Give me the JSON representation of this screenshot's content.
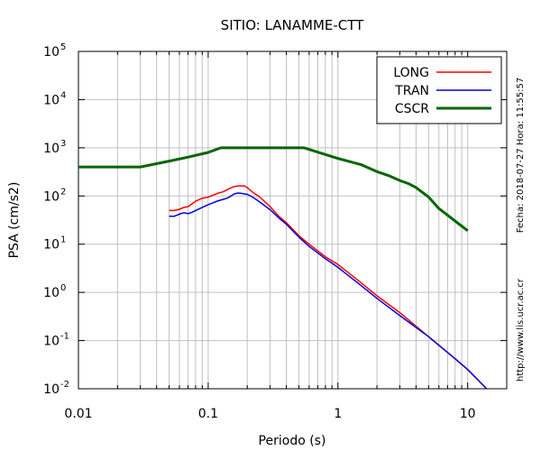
{
  "chart_data": {
    "type": "line",
    "title": "SITIO: LANAMME-CTT",
    "xlabel": "Periodo (s)",
    "ylabel": "PSA (cm/s2)",
    "x_scale": "log",
    "y_scale": "log",
    "xlim": [
      0.01,
      20
    ],
    "ylim": [
      0.01,
      100000
    ],
    "x_ticks": [
      0.01,
      0.1,
      1,
      10
    ],
    "x_tick_labels": [
      "0.01",
      "0.1",
      "1",
      "10"
    ],
    "y_ticks": [
      0.01,
      0.1,
      1,
      10,
      100,
      1000,
      10000,
      100000
    ],
    "y_tick_exponents": [
      "-2",
      "-1",
      "0",
      "1",
      "2",
      "3",
      "4",
      "5"
    ],
    "y_tick_base": "10",
    "grid": true,
    "legend_position": "top-right",
    "side_text": {
      "date": "Fecha: 2018-07-27 Hora: 11:55:57",
      "url": "http://www.lis.ucr.ac.cr"
    },
    "series": [
      {
        "name": "LONG",
        "color": "#ff0000",
        "x": [
          0.05,
          0.055,
          0.06,
          0.065,
          0.07,
          0.08,
          0.09,
          0.1,
          0.11,
          0.12,
          0.13,
          0.14,
          0.15,
          0.16,
          0.17,
          0.18,
          0.19,
          0.2,
          0.22,
          0.25,
          0.3,
          0.35,
          0.4,
          0.5,
          0.6,
          0.8,
          1.0,
          1.5,
          2.0,
          3.0,
          5.0,
          8.0,
          10.0,
          14.0
        ],
        "y": [
          50,
          50,
          53,
          58,
          60,
          78,
          90,
          95,
          105,
          115,
          122,
          135,
          148,
          158,
          162,
          162,
          162,
          150,
          120,
          95,
          60,
          38,
          28,
          15,
          10,
          5.5,
          3.8,
          1.6,
          0.85,
          0.38,
          0.12,
          0.042,
          0.025,
          0.01
        ]
      },
      {
        "name": "TRAN",
        "color": "#0000dd",
        "x": [
          0.05,
          0.055,
          0.06,
          0.065,
          0.07,
          0.075,
          0.08,
          0.09,
          0.1,
          0.11,
          0.12,
          0.13,
          0.14,
          0.15,
          0.16,
          0.17,
          0.18,
          0.2,
          0.22,
          0.25,
          0.3,
          0.35,
          0.4,
          0.5,
          0.6,
          0.8,
          1.0,
          1.5,
          2.0,
          3.0,
          5.0,
          8.0,
          10.0,
          14.0
        ],
        "y": [
          38,
          38,
          42,
          45,
          43,
          46,
          50,
          58,
          66,
          73,
          80,
          85,
          90,
          100,
          112,
          115,
          113,
          108,
          95,
          75,
          52,
          35,
          26,
          14,
          9,
          5,
          3.3,
          1.4,
          0.75,
          0.33,
          0.12,
          0.042,
          0.025,
          0.01
        ]
      },
      {
        "name": "CSCR",
        "color": "#006600",
        "x": [
          0.01,
          0.03,
          0.05,
          0.07,
          0.1,
          0.125,
          0.2,
          0.3,
          0.55,
          1.0,
          1.5,
          2.0,
          2.5,
          3.0,
          3.5,
          4.0,
          5.0,
          6.0,
          10.0
        ],
        "y": [
          400,
          400,
          530,
          640,
          800,
          1000,
          1000,
          1000,
          1000,
          600,
          450,
          320,
          260,
          210,
          180,
          150,
          95,
          55,
          19
        ]
      }
    ]
  }
}
